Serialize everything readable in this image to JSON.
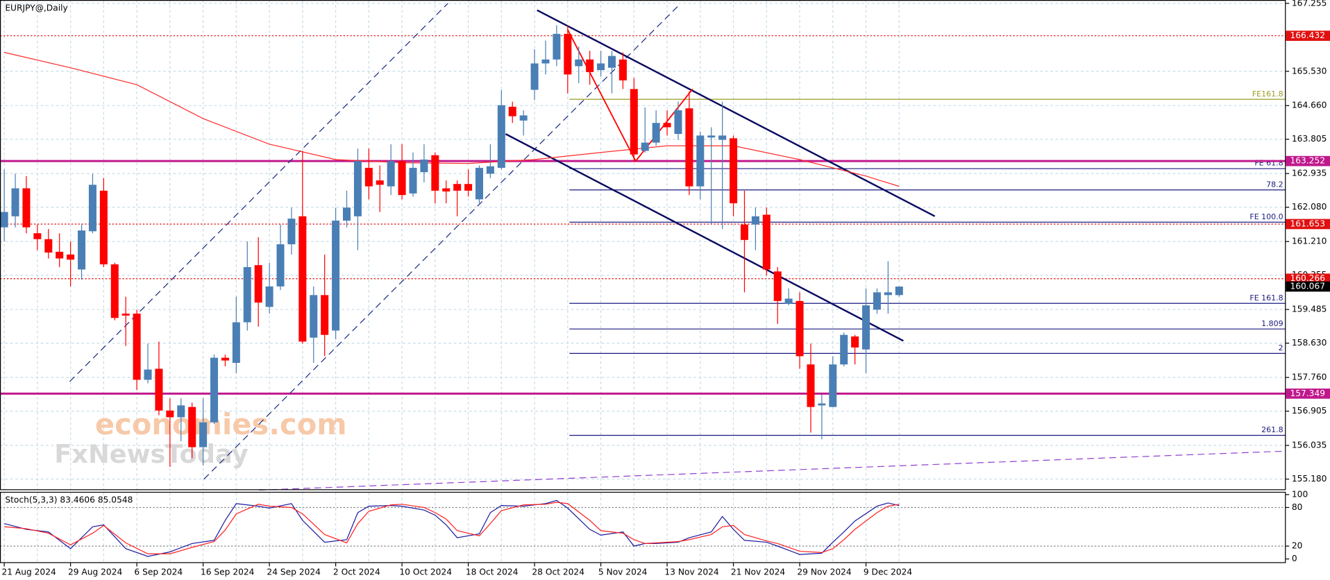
{
  "chart_data": [
    {
      "type": "candlestick",
      "title": "EURJPY@,Daily",
      "categories": [
        "21 Aug 2024",
        null,
        null,
        null,
        null,
        null,
        "29 Aug 2024",
        null,
        null,
        null,
        null,
        null,
        "6 Sep 2024",
        null,
        null,
        null,
        null,
        null,
        "16 Sep 2024",
        null,
        null,
        null,
        null,
        null,
        "24 Sep 2024",
        null,
        null,
        null,
        null,
        null,
        "2 Oct 2024",
        null,
        null,
        null,
        null,
        null,
        "10 Oct 2024",
        null,
        null,
        null,
        null,
        null,
        "18 Oct 2024",
        null,
        null,
        null,
        null,
        null,
        "28 Oct 2024",
        null,
        null,
        null,
        null,
        null,
        "5 Nov 2024",
        null,
        null,
        null,
        null,
        null,
        "13 Nov 2024",
        null,
        null,
        null,
        null,
        null,
        "21 Nov 2024",
        null,
        null,
        null,
        null,
        null,
        "29 Nov 2024",
        null,
        null,
        null,
        null,
        null,
        "9 Dec 2024",
        null,
        null,
        null
      ],
      "open": [
        161.57,
        161.85,
        162.56,
        161.42,
        161.27,
        160.95,
        160.88,
        160.5,
        161.47,
        162.5,
        160.63,
        159.38,
        159.38,
        157.7,
        157.98,
        156.92,
        156.75,
        157.01,
        155.99,
        156.62,
        158.26,
        158.13,
        159.16,
        160.61,
        159.55,
        160.07,
        161.14,
        161.85,
        158.77,
        159.85,
        158.95,
        161.74,
        161.85,
        163.08,
        162.76,
        162.61,
        163.25,
        162.43,
        162.97,
        163.4,
        162.56,
        162.67,
        162.67,
        162.28,
        162.93,
        163.08,
        164.63,
        164.28,
        165.06,
        165.73,
        165.83,
        166.48,
        165.66,
        165.83,
        165.56,
        165.62,
        165.83,
        165.08,
        163.51,
        163.72,
        164.22,
        163.94,
        164.59,
        162.61,
        163.85,
        163.79,
        163.83,
        161.64,
        161.64,
        161.89,
        160.45,
        159.63,
        159.7,
        158.09,
        157.05,
        157.01,
        158.09,
        158.8,
        158.47,
        159.48,
        159.85,
        159.85
      ],
      "high": [
        163.04,
        162.93,
        162.87,
        161.64,
        161.53,
        161.42,
        161.21,
        161.64,
        162.93,
        162.82,
        160.67,
        159.81,
        159.48,
        158.62,
        158.67,
        157.23,
        157.23,
        157.12,
        157.23,
        158.34,
        158.34,
        159.81,
        161.21,
        161.32,
        160.67,
        161.64,
        162.07,
        163.51,
        160.07,
        160.88,
        162.07,
        162.5,
        163.57,
        163.57,
        163.14,
        163.68,
        163.68,
        163.47,
        163.68,
        163.47,
        162.76,
        162.76,
        163.04,
        163.14,
        163.68,
        165.06,
        164.76,
        164.54,
        166.09,
        166.31,
        166.7,
        166.7,
        166.16,
        166.05,
        166.05,
        166.05,
        166.01,
        165.36,
        164.61,
        164.54,
        164.54,
        164.76,
        165.02,
        164.0,
        164.11,
        164.76,
        163.9,
        162.5,
        162.07,
        162.07,
        160.56,
        160.02,
        159.92,
        158.62,
        157.33,
        158.3,
        158.9,
        158.84,
        160.02,
        160.02,
        160.71,
        160.07
      ],
      "low": [
        161.21,
        161.57,
        161.42,
        160.99,
        160.78,
        160.56,
        160.07,
        160.24,
        161.42,
        160.56,
        159.21,
        158.56,
        157.44,
        157.61,
        156.8,
        155.49,
        156.14,
        155.71,
        155.53,
        156.58,
        158.04,
        157.87,
        158.95,
        159.05,
        159.38,
        159.98,
        160.88,
        158.62,
        158.13,
        158.3,
        158.73,
        161.57,
        160.99,
        162.28,
        161.96,
        162.39,
        162.28,
        162.35,
        162.71,
        162.18,
        162.18,
        161.85,
        162.35,
        162.18,
        162.82,
        163.04,
        164.22,
        163.9,
        164.8,
        165.45,
        165.66,
        164.97,
        165.23,
        165.19,
        165.4,
        164.97,
        165.08,
        163.25,
        163.47,
        163.64,
        163.9,
        163.79,
        162.39,
        162.28,
        161.64,
        161.53,
        161.85,
        159.92,
        160.99,
        160.35,
        159.12,
        159.59,
        157.98,
        156.36,
        156.19,
        157.01,
        158.04,
        158.09,
        157.87,
        159.38,
        159.38,
        159.81
      ],
      "close": [
        161.96,
        162.56,
        161.57,
        161.27,
        160.93,
        160.78,
        160.75,
        161.49,
        162.65,
        160.63,
        159.27,
        159.33,
        157.7,
        157.96,
        156.92,
        156.75,
        157.05,
        155.99,
        156.62,
        158.26,
        158.19,
        159.16,
        160.56,
        159.66,
        160.07,
        161.14,
        161.79,
        158.67,
        159.85,
        158.84,
        161.74,
        162.07,
        163.25,
        162.61,
        162.65,
        163.25,
        162.39,
        163.08,
        163.29,
        162.5,
        162.48,
        162.5,
        162.5,
        163.08,
        163.12,
        164.67,
        164.39,
        164.41,
        165.73,
        165.83,
        166.48,
        165.45,
        165.83,
        165.51,
        165.73,
        165.92,
        165.3,
        163.42,
        163.72,
        164.22,
        164.11,
        164.54,
        162.61,
        163.9,
        163.9,
        163.9,
        162.18,
        161.25,
        161.85,
        160.5,
        159.7,
        159.76,
        158.3,
        157.01,
        157.1,
        158.09,
        158.84,
        158.52,
        159.59,
        159.92,
        159.92,
        160.067
      ],
      "up_color": "#4a7fb5",
      "down_color": "#ff0000",
      "ylim": [
        154.9,
        167.34
      ],
      "yticks": [
        167.255,
        {
          "value": 165.53,
          "label": "165.530"
        },
        {
          "value": 164.66,
          "label": "164.660"
        },
        163.805,
        162.935,
        {
          "value": 162.08,
          "label": "162.080"
        },
        {
          "value": 161.21,
          "label": "161.210"
        },
        160.355,
        159.485,
        {
          "value": 158.63,
          "label": "158.630"
        },
        {
          "value": 157.76,
          "label": "157.760"
        },
        156.905,
        156.035,
        {
          "value": 155.18,
          "label": "155.180"
        }
      ],
      "grid": true,
      "moving_average": {
        "color": "#ff2a2a",
        "x": [
          0,
          6,
          12,
          18,
          24,
          30,
          36,
          42,
          48,
          54,
          60,
          66,
          72,
          78,
          81
        ],
        "values": [
          166.01,
          165.62,
          165.19,
          164.33,
          163.68,
          163.29,
          163.21,
          163.19,
          163.29,
          163.47,
          163.64,
          163.64,
          163.29,
          162.87,
          162.61
        ]
      },
      "levels": [
        {
          "value": 166.432,
          "color": "#e01010",
          "style": "dotted"
        },
        {
          "value": 163.252,
          "color": "#c0188c",
          "style": "solid"
        },
        {
          "value": 161.653,
          "color": "#e01010",
          "style": "dotted"
        },
        {
          "value": 160.266,
          "color": "#e01010",
          "style": "dotted"
        },
        {
          "value": 157.349,
          "color": "#c0188c",
          "style": "solid"
        }
      ],
      "current_price": 160.067,
      "fibo": [
        {
          "label": "FE161.8",
          "value": 164.82,
          "color": "#9a9a20"
        },
        {
          "label": "FE 61.8",
          "value": 163.06,
          "color": "#1a1a80"
        },
        {
          "label": "78.2",
          "value": 162.52,
          "color": "#1a1a80"
        },
        {
          "label": "FE 100.0",
          "value": 161.7,
          "color": "#1a1a80"
        },
        {
          "label": "FE 161.8",
          "value": 159.64,
          "color": "#1a1a80"
        },
        {
          "label": "1.809",
          "value": 158.99,
          "color": "#1a1a80"
        },
        {
          "label": "2",
          "value": 158.37,
          "color": "#1a1a80"
        },
        {
          "label": "261.8",
          "value": 156.29,
          "color": "#1a1a80"
        }
      ],
      "watermark": [
        "economies.com",
        "FxNewsToday"
      ]
    },
    {
      "type": "line",
      "title": "Stoch(5,3,3) 83.4606 85.0548",
      "x": [
        0,
        2,
        4,
        6,
        8,
        9,
        11,
        13,
        15,
        17,
        19,
        20,
        21,
        23,
        24,
        26,
        27,
        29,
        31,
        32,
        33,
        35,
        36,
        38,
        39,
        40,
        41,
        43,
        44,
        45,
        47,
        49,
        50,
        51,
        53,
        54,
        56,
        57,
        58,
        59,
        61,
        62,
        64,
        65,
        66,
        67,
        69,
        70,
        72,
        74,
        75,
        76,
        77,
        79,
        80,
        81
      ],
      "series": [
        {
          "color": "#1a1aa0",
          "values": [
            55,
            46,
            42,
            16,
            50,
            53,
            16,
            4,
            11,
            24,
            29,
            60,
            86,
            82,
            79,
            86,
            60,
            26,
            30,
            72,
            82,
            83,
            82,
            76,
            68,
            53,
            33,
            39,
            72,
            83,
            82,
            86,
            91,
            79,
            46,
            37,
            42,
            20,
            24,
            24,
            26,
            33,
            42,
            66,
            46,
            29,
            26,
            20,
            7,
            9,
            26,
            42,
            59,
            82,
            87,
            83
          ]
        },
        {
          "color": "#ff2020",
          "values": [
            50,
            47,
            40,
            22,
            40,
            52,
            25,
            8,
            8,
            18,
            27,
            45,
            70,
            85,
            82,
            80,
            70,
            38,
            25,
            55,
            74,
            84,
            85,
            80,
            72,
            62,
            44,
            36,
            55,
            75,
            84,
            85,
            88,
            86,
            60,
            44,
            40,
            30,
            24,
            25,
            27,
            30,
            38,
            50,
            52,
            38,
            28,
            24,
            12,
            10,
            16,
            30,
            46,
            72,
            82,
            85
          ]
        }
      ],
      "ylim": [
        -5,
        103
      ],
      "yticks": [
        0,
        20,
        80,
        100
      ]
    }
  ]
}
